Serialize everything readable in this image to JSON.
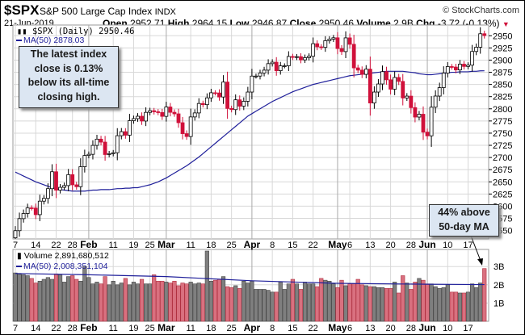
{
  "header": {
    "symbol": "$SPX",
    "name": "S&P 500 Large Cap Index",
    "exchange": "INDX",
    "copyright": "© StockCharts.com",
    "date": "21-Jun-2019",
    "open_label": "Open",
    "open": "2952.71",
    "high_label": "High",
    "high": "2964.15",
    "low_label": "Low",
    "low": "2946.87",
    "close_label": "Close",
    "close": "2950.46",
    "volume_label": "Volume",
    "volume": "2.9B",
    "chg_label": "Chg",
    "chg": "-3.72 (-0.13%)"
  },
  "colors": {
    "down": "#d0103a",
    "up": "#000000",
    "ma": "#1f1f9a",
    "vol_up": "#7f7f7f",
    "vol_down": "#d9707f",
    "grid": "#d8d8d8"
  },
  "annotations": {
    "box1": [
      "The latest index",
      "close is 0.13%",
      "below its all-time",
      "closing high."
    ],
    "box2": [
      "44% above",
      "50-day MA"
    ]
  },
  "chart_data": [
    {
      "type": "candlestick",
      "legend": [
        "$SPX (Daily) 2950.46",
        "MA(50) 2878.03"
      ],
      "ylim": [
        2515,
        2968
      ],
      "yticks": [
        2525,
        2550,
        2575,
        2600,
        2625,
        2650,
        2675,
        2700,
        2725,
        2750,
        2775,
        2800,
        2825,
        2850,
        2875,
        2900,
        2925,
        2950
      ],
      "xticks": [
        {
          "label": "7",
          "day": 0
        },
        {
          "label": "14",
          "day": 5
        },
        {
          "label": "22",
          "day": 10
        },
        {
          "label": "28",
          "day": 14
        },
        {
          "label": "Feb",
          "day": 18,
          "month": true
        },
        {
          "label": "11",
          "day": 24
        },
        {
          "label": "19",
          "day": 29
        },
        {
          "label": "25",
          "day": 33
        },
        {
          "label": "Mar",
          "day": 37,
          "month": true
        },
        {
          "label": "11",
          "day": 43
        },
        {
          "label": "18",
          "day": 48
        },
        {
          "label": "25",
          "day": 53
        },
        {
          "label": "Apr",
          "day": 58,
          "month": true
        },
        {
          "label": "8",
          "day": 63
        },
        {
          "label": "15",
          "day": 68
        },
        {
          "label": "22",
          "day": 73
        },
        {
          "label": "May",
          "day": 79,
          "month": true
        },
        {
          "label": "6",
          "day": 82
        },
        {
          "label": "13",
          "day": 87
        },
        {
          "label": "20",
          "day": 92
        },
        {
          "label": "28",
          "day": 97
        },
        {
          "label": "Jun",
          "day": 101,
          "month": true
        },
        {
          "label": "10",
          "day": 106
        },
        {
          "label": "17",
          "day": 111
        }
      ],
      "first_open": 2535,
      "close": [
        2549.69,
        2574.41,
        2584.96,
        2596.64,
        2596.26,
        2582.61,
        2610.3,
        2616.1,
        2635.96,
        2670.71,
        2632.9,
        2638.7,
        2642.33,
        2664.76,
        2643.85,
        2640.0,
        2681.05,
        2704.1,
        2706.53,
        2724.87,
        2737.7,
        2731.61,
        2706.05,
        2707.88,
        2709.8,
        2744.73,
        2753.03,
        2745.73,
        2775.6,
        2779.76,
        2784.7,
        2774.88,
        2792.67,
        2796.11,
        2793.9,
        2792.38,
        2784.49,
        2803.69,
        2792.81,
        2789.65,
        2771.45,
        2748.93,
        2743.07,
        2783.3,
        2791.52,
        2810.92,
        2808.48,
        2822.48,
        2832.94,
        2832.57,
        2824.23,
        2854.88,
        2800.71,
        2798.36,
        2818.46,
        2805.37,
        2815.44,
        2834.4,
        2867.19,
        2867.24,
        2873.4,
        2879.39,
        2892.74,
        2895.77,
        2878.2,
        2888.21,
        2888.32,
        2907.41,
        2905.58,
        2907.06,
        2900.45,
        2905.03,
        2907.97,
        2933.68,
        2927.25,
        2926.17,
        2939.88,
        2943.03,
        2945.83,
        2923.73,
        2917.52,
        2945.64,
        2932.47,
        2884.05,
        2879.42,
        2870.72,
        2881.4,
        2811.87,
        2834.41,
        2850.96,
        2876.32,
        2859.53,
        2840.23,
        2864.36,
        2856.27,
        2822.24,
        2826.06,
        2802.39,
        2783.02,
        2788.86,
        2752.06,
        2744.45,
        2803.27,
        2826.15,
        2843.49,
        2873.34,
        2886.73,
        2885.72,
        2879.84,
        2891.64,
        2886.98,
        2889.67,
        2917.75,
        2926.46,
        2954.18,
        2950.46
      ],
      "ma50": [
        2670,
        2666,
        2662,
        2658,
        2654,
        2650,
        2647,
        2644,
        2641,
        2638,
        2636,
        2634,
        2633,
        2632,
        2631,
        2631,
        2631,
        2631,
        2632,
        2633,
        2633,
        2634,
        2634,
        2634,
        2635,
        2636,
        2636,
        2637,
        2637,
        2638,
        2638,
        2640,
        2642,
        2644,
        2647,
        2650,
        2654,
        2658,
        2663,
        2668,
        2673,
        2678,
        2683,
        2689,
        2695,
        2701,
        2708,
        2715,
        2722,
        2729,
        2736,
        2743,
        2750,
        2757,
        2764,
        2771,
        2778,
        2785,
        2790,
        2795,
        2800,
        2805,
        2810,
        2815,
        2819,
        2823,
        2827,
        2831,
        2835,
        2838,
        2841,
        2844,
        2847,
        2850,
        2852,
        2854,
        2856,
        2858,
        2860,
        2862,
        2864,
        2866,
        2868,
        2869,
        2870,
        2871,
        2872,
        2873,
        2874,
        2875,
        2876,
        2877,
        2877,
        2877,
        2877,
        2877,
        2876,
        2875,
        2874,
        2872,
        2871,
        2870,
        2870,
        2871,
        2872,
        2873,
        2874,
        2875,
        2875,
        2876,
        2876,
        2876,
        2877,
        2877,
        2878,
        2878.03
      ]
    },
    {
      "type": "bar",
      "legend": [
        "Volume 2,891,680,512",
        "MA(50) 2,008,351,104"
      ],
      "ylim": [
        0,
        3.9
      ],
      "yticks": [
        {
          "v": 1,
          "label": "1B"
        },
        {
          "v": 2,
          "label": "2B"
        },
        {
          "v": 3,
          "label": "3B"
        }
      ],
      "volume_billions": [
        2.65,
        2.58,
        2.55,
        2.5,
        2.35,
        2.1,
        2.2,
        2.3,
        2.4,
        2.3,
        2.6,
        2.55,
        2.15,
        2.45,
        2.5,
        2.3,
        2.2,
        3.0,
        2.4,
        2.05,
        2.15,
        2.05,
        2.45,
        2.0,
        2.2,
        2.0,
        2.1,
        2.35,
        2.0,
        2.15,
        2.05,
        2.3,
        2.05,
        2.05,
        2.55,
        2.2,
        2.2,
        2.15,
        2.1,
        2.2,
        1.95,
        2.1,
        2.05,
        2.15,
        2.05,
        2.1,
        2.05,
        3.85,
        2.2,
        2.25,
        2.3,
        2.45,
        1.9,
        1.85,
        1.95,
        1.8,
        2.2,
        2.1,
        2.2,
        1.75,
        1.75,
        1.75,
        1.7,
        1.6,
        1.6,
        2.15,
        1.75,
        2.05,
        2.3,
        2.05,
        1.75,
        2.15,
        2.05,
        2.05,
        1.9,
        2.35,
        2.25,
        2.2,
        2.05,
        1.85,
        2.25,
        1.95,
        2.05,
        2.05,
        2.3,
        2.0,
        1.95,
        1.9,
        1.9,
        1.85,
        1.85,
        1.8,
        1.8,
        2.15,
        1.55,
        2.5,
        2.1,
        1.75,
        2.15,
        2.35,
        2.25,
        2.05,
        2.05,
        1.9,
        1.8,
        1.85,
        2.0,
        1.6,
        1.6,
        1.55,
        1.55,
        1.6,
        2.05,
        1.85,
        2.1,
        2.89
      ],
      "volume_ma50": [
        [
          0,
          2.62
        ],
        [
          18,
          2.55
        ],
        [
          37,
          2.45
        ],
        [
          58,
          2.22
        ],
        [
          79,
          2.08
        ],
        [
          101,
          2.03
        ],
        [
          115,
          2.01
        ]
      ]
    }
  ]
}
